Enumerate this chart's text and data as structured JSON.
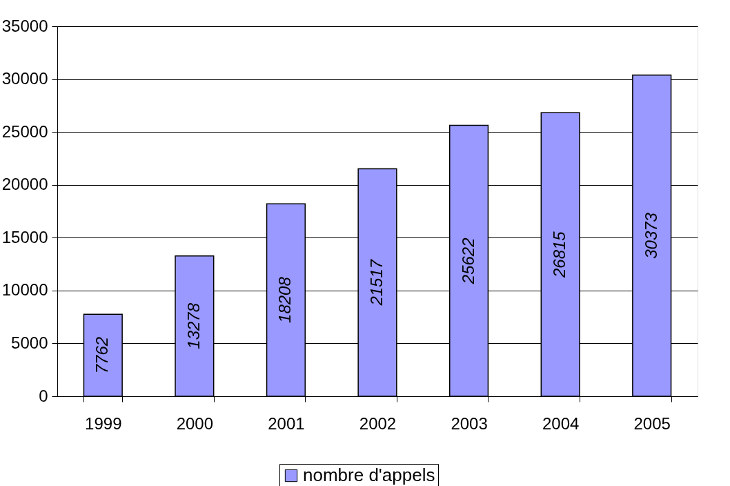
{
  "chart_data": {
    "type": "bar",
    "categories": [
      "1999",
      "2000",
      "2001",
      "2002",
      "2003",
      "2004",
      "2005"
    ],
    "series": [
      {
        "name": "nombre d'appels",
        "color": "#9999ff",
        "values": [
          7762,
          13278,
          18208,
          21517,
          25622,
          26815,
          30373
        ]
      }
    ],
    "ylim": [
      0,
      35000
    ],
    "yticks": [
      0,
      5000,
      10000,
      15000,
      20000,
      25000,
      30000,
      35000
    ],
    "grid": "y",
    "legend": "bottom",
    "data_labels": true
  }
}
